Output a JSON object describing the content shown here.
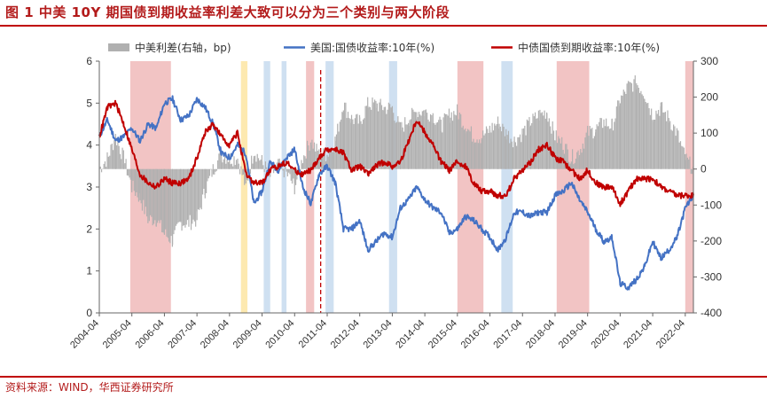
{
  "header": {
    "title": "图 1  中美 10Y 期国债到期收益率利差大致可以分为三个类别与两大阶段"
  },
  "footer": {
    "source": "资料来源：WIND，华西证券研究所"
  },
  "colors": {
    "us": "#4472c4",
    "cn": "#c00000",
    "spread": "#b0b0b0",
    "shade_pink": "#f2c4c4",
    "shade_blue": "#cfe0f1",
    "shade_yellow": "#fde9b0",
    "accent": "#c00000"
  },
  "chart_data": {
    "type": "line",
    "title": "",
    "legend_position": "top",
    "x_range": [
      2004.25,
      2022.5
    ],
    "y_left_range": [
      0,
      6
    ],
    "y_right_range": [
      -400,
      300
    ],
    "y_left_ticks": [
      "0",
      "1",
      "2",
      "3",
      "4",
      "5",
      "6"
    ],
    "y_right_ticks": [
      "-400",
      "-300",
      "-200",
      "-100",
      "0",
      "100",
      "200",
      "300"
    ],
    "x_ticks": [
      "2004-04",
      "2005-04",
      "2006-04",
      "2007-04",
      "2008-04",
      "2009-04",
      "2010-04",
      "2011-04",
      "2012-04",
      "2013-04",
      "2014-04",
      "2015-04",
      "2016-04",
      "2017-04",
      "2018-04",
      "2019-04",
      "2020-04",
      "2021-04",
      "2022-04"
    ],
    "legend": [
      "中美利差(右轴，bp)",
      "美国:国债收益率:10年(%)",
      "中债国债到期收益率:10年(%)"
    ],
    "shaded_regions": [
      {
        "start": 2005.2,
        "end": 2006.45,
        "kind": "pink"
      },
      {
        "start": 2008.6,
        "end": 2008.8,
        "kind": "yellow"
      },
      {
        "start": 2009.3,
        "end": 2009.5,
        "kind": "blue"
      },
      {
        "start": 2009.85,
        "end": 2010.0,
        "kind": "blue"
      },
      {
        "start": 2010.6,
        "end": 2010.85,
        "kind": "pink"
      },
      {
        "start": 2011.2,
        "end": 2011.45,
        "kind": "blue"
      },
      {
        "start": 2013.15,
        "end": 2013.4,
        "kind": "blue"
      },
      {
        "start": 2015.25,
        "end": 2016.05,
        "kind": "pink"
      },
      {
        "start": 2016.6,
        "end": 2016.95,
        "kind": "blue"
      },
      {
        "start": 2018.3,
        "end": 2019.3,
        "kind": "pink"
      },
      {
        "start": 2022.25,
        "end": 2022.5,
        "kind": "pink"
      }
    ],
    "dashed_marker_x": 2011.05,
    "series": [
      {
        "name": "美国:国债收益率:10年(%)",
        "axis": "left",
        "x": [
          2004.25,
          2004.5,
          2004.75,
          2005.0,
          2005.25,
          2005.5,
          2005.75,
          2006.0,
          2006.25,
          2006.5,
          2006.75,
          2007.0,
          2007.25,
          2007.5,
          2007.75,
          2008.0,
          2008.25,
          2008.5,
          2008.75,
          2009.0,
          2009.25,
          2009.5,
          2009.75,
          2010.0,
          2010.25,
          2010.5,
          2010.75,
          2011.0,
          2011.25,
          2011.5,
          2011.75,
          2012.0,
          2012.25,
          2012.5,
          2012.75,
          2013.0,
          2013.25,
          2013.5,
          2013.75,
          2014.0,
          2014.25,
          2014.5,
          2014.75,
          2015.0,
          2015.25,
          2015.5,
          2015.75,
          2016.0,
          2016.25,
          2016.5,
          2016.75,
          2017.0,
          2017.25,
          2017.5,
          2017.75,
          2018.0,
          2018.25,
          2018.5,
          2018.75,
          2019.0,
          2019.25,
          2019.5,
          2019.75,
          2020.0,
          2020.25,
          2020.5,
          2020.75,
          2021.0,
          2021.25,
          2021.5,
          2021.75,
          2022.0,
          2022.25,
          2022.5
        ],
        "values": [
          4.2,
          4.6,
          4.1,
          4.2,
          4.4,
          4.1,
          4.5,
          4.4,
          5.0,
          5.1,
          4.6,
          4.7,
          5.1,
          4.9,
          4.5,
          3.8,
          3.7,
          4.0,
          3.8,
          2.6,
          2.9,
          3.6,
          3.4,
          3.7,
          3.9,
          3.0,
          2.6,
          3.3,
          3.5,
          3.1,
          2.0,
          2.0,
          2.2,
          1.5,
          1.7,
          1.9,
          1.8,
          2.5,
          2.7,
          3.0,
          2.7,
          2.5,
          2.4,
          1.9,
          2.0,
          2.3,
          2.2,
          2.0,
          1.8,
          1.5,
          1.8,
          2.4,
          2.4,
          2.3,
          2.4,
          2.4,
          2.8,
          2.9,
          3.1,
          2.7,
          2.4,
          2.0,
          1.7,
          1.8,
          0.7,
          0.6,
          0.8,
          1.1,
          1.7,
          1.3,
          1.5,
          1.8,
          2.5,
          2.8
        ]
      },
      {
        "name": "中债国债到期收益率:10年(%)",
        "axis": "left",
        "x": [
          2004.25,
          2004.5,
          2004.75,
          2005.0,
          2005.25,
          2005.5,
          2005.75,
          2006.0,
          2006.25,
          2006.5,
          2006.75,
          2007.0,
          2007.25,
          2007.5,
          2007.75,
          2008.0,
          2008.25,
          2008.5,
          2008.75,
          2009.0,
          2009.25,
          2009.5,
          2009.75,
          2010.0,
          2010.25,
          2010.5,
          2010.75,
          2011.0,
          2011.25,
          2011.5,
          2011.75,
          2012.0,
          2012.25,
          2012.5,
          2012.75,
          2013.0,
          2013.25,
          2013.5,
          2013.75,
          2014.0,
          2014.25,
          2014.5,
          2014.75,
          2015.0,
          2015.25,
          2015.5,
          2015.75,
          2016.0,
          2016.25,
          2016.5,
          2016.75,
          2017.0,
          2017.25,
          2017.5,
          2017.75,
          2018.0,
          2018.25,
          2018.5,
          2018.75,
          2019.0,
          2019.25,
          2019.5,
          2019.75,
          2020.0,
          2020.25,
          2020.5,
          2020.75,
          2021.0,
          2021.25,
          2021.5,
          2021.75,
          2022.0,
          2022.25,
          2022.5
        ],
        "values": [
          4.2,
          4.9,
          5.0,
          4.5,
          3.9,
          3.3,
          3.1,
          3.0,
          3.2,
          3.1,
          3.1,
          3.2,
          3.7,
          4.3,
          4.5,
          4.2,
          4.0,
          4.3,
          3.3,
          3.1,
          3.1,
          3.4,
          3.5,
          3.6,
          3.4,
          3.3,
          3.4,
          3.7,
          3.9,
          3.9,
          3.8,
          3.4,
          3.5,
          3.3,
          3.5,
          3.6,
          3.5,
          3.6,
          4.1,
          4.6,
          4.3,
          4.0,
          3.6,
          3.4,
          3.6,
          3.5,
          3.1,
          2.9,
          2.9,
          2.8,
          2.8,
          3.2,
          3.4,
          3.6,
          3.9,
          4.0,
          3.7,
          3.6,
          3.4,
          3.2,
          3.4,
          3.1,
          3.0,
          3.0,
          2.6,
          2.9,
          3.2,
          3.2,
          3.2,
          3.0,
          2.9,
          2.8,
          2.8,
          2.8
        ]
      },
      {
        "name": "中美利差(右轴，bp)",
        "axis": "right",
        "kind": "bar",
        "x": [
          2004.25,
          2004.5,
          2004.75,
          2005.0,
          2005.25,
          2005.5,
          2005.75,
          2006.0,
          2006.25,
          2006.5,
          2006.75,
          2007.0,
          2007.25,
          2007.5,
          2007.75,
          2008.0,
          2008.25,
          2008.5,
          2008.75,
          2009.0,
          2009.25,
          2009.5,
          2009.75,
          2010.0,
          2010.25,
          2010.5,
          2010.75,
          2011.0,
          2011.25,
          2011.5,
          2011.75,
          2012.0,
          2012.25,
          2012.5,
          2012.75,
          2013.0,
          2013.25,
          2013.5,
          2013.75,
          2014.0,
          2014.25,
          2014.5,
          2014.75,
          2015.0,
          2015.25,
          2015.5,
          2015.75,
          2016.0,
          2016.25,
          2016.5,
          2016.75,
          2017.0,
          2017.25,
          2017.5,
          2017.75,
          2018.0,
          2018.25,
          2018.5,
          2018.75,
          2019.0,
          2019.25,
          2019.5,
          2019.75,
          2020.0,
          2020.25,
          2020.5,
          2020.75,
          2021.0,
          2021.25,
          2021.5,
          2021.75,
          2022.0,
          2022.25,
          2022.5
        ],
        "values": [
          0,
          30,
          90,
          30,
          -50,
          -80,
          -140,
          -140,
          -180,
          -200,
          -150,
          -150,
          -140,
          -60,
          0,
          40,
          30,
          30,
          -50,
          50,
          20,
          -20,
          10,
          -10,
          -50,
          30,
          80,
          40,
          40,
          80,
          180,
          140,
          130,
          180,
          180,
          170,
          170,
          110,
          140,
          160,
          160,
          150,
          120,
          150,
          160,
          120,
          90,
          90,
          110,
          130,
          100,
          80,
          100,
          130,
          150,
          160,
          90,
          70,
          30,
          50,
          100,
          110,
          130,
          120,
          190,
          230,
          240,
          210,
          150,
          170,
          140,
          100,
          30,
          0
        ]
      }
    ]
  }
}
